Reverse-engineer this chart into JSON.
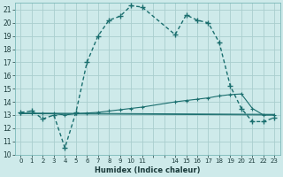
{
  "xlabel": "Humidex (Indice chaleur)",
  "bg_color": "#ceeaea",
  "grid_color": "#aacece",
  "line_color": "#1a6e6e",
  "ylim": [
    10,
    21.5
  ],
  "xlim": [
    -0.5,
    23.5
  ],
  "yticks": [
    10,
    11,
    12,
    13,
    14,
    15,
    16,
    17,
    18,
    19,
    20,
    21
  ],
  "xticks_major": [
    0,
    1,
    2,
    3,
    4,
    5,
    6,
    7,
    8,
    9,
    10,
    11,
    12,
    13,
    14,
    15,
    16,
    17,
    18,
    19,
    20,
    21,
    22,
    23
  ],
  "xtick_labels": [
    "0",
    "1",
    "2",
    "3",
    "4",
    "5",
    "6",
    "7",
    "8",
    "9",
    "10",
    "11",
    "",
    "",
    "14",
    "15",
    "16",
    "17",
    "18",
    "19",
    "20",
    "21",
    "22",
    "23"
  ],
  "series1_x": [
    0,
    1,
    2,
    3,
    4,
    5,
    6,
    7,
    8,
    9,
    10,
    11,
    14,
    15,
    16,
    17,
    18,
    19,
    20,
    21,
    22,
    23
  ],
  "series1_y": [
    13.2,
    13.3,
    12.7,
    13.0,
    10.5,
    13.2,
    17.0,
    19.0,
    20.2,
    20.5,
    21.3,
    21.2,
    19.1,
    20.6,
    20.2,
    20.0,
    18.5,
    15.2,
    13.5,
    12.5,
    12.5,
    12.8
  ],
  "series2_x": [
    0,
    1,
    2,
    3,
    4,
    5,
    6,
    7,
    8,
    9,
    10,
    11,
    14,
    15,
    16,
    17,
    18,
    19,
    20,
    21,
    22,
    23
  ],
  "series2_y": [
    13.1,
    13.1,
    13.1,
    13.1,
    13.0,
    13.1,
    13.15,
    13.2,
    13.3,
    13.4,
    13.5,
    13.6,
    14.0,
    14.1,
    14.2,
    14.3,
    14.45,
    14.55,
    14.6,
    13.5,
    13.0,
    13.0
  ],
  "series3_x": [
    0,
    23
  ],
  "series3_y": [
    13.1,
    13.0
  ],
  "series4_x": [
    0,
    23
  ],
  "series4_y": [
    13.15,
    13.05
  ]
}
